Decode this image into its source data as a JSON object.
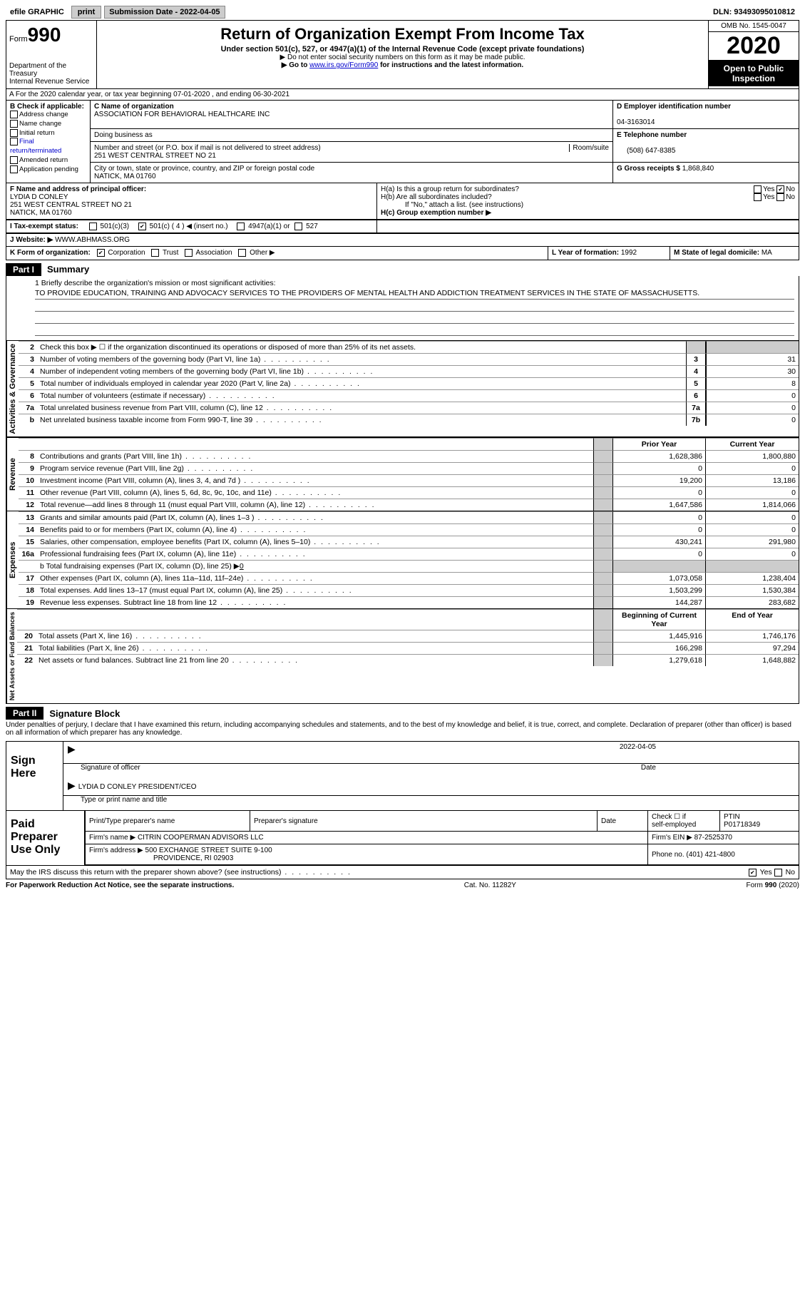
{
  "topbar": {
    "efile": "efile GRAPHIC",
    "print": "print",
    "sub_label": "Submission Date - ",
    "sub_date": "2022-04-05",
    "dln_label": "DLN: ",
    "dln": "93493095010812"
  },
  "header": {
    "form_label": "Form",
    "form_num": "990",
    "dept1": "Department of the Treasury",
    "dept2": "Internal Revenue Service",
    "title": "Return of Organization Exempt From Income Tax",
    "sub1": "Under section 501(c), 527, or 4947(a)(1) of the Internal Revenue Code (except private foundations)",
    "sub2": "▶ Do not enter social security numbers on this form as it may be made public.",
    "sub3_a": "▶ Go to ",
    "sub3_link": "www.irs.gov/Form990",
    "sub3_b": " for instructions and the latest information.",
    "omb": "OMB No. 1545-0047",
    "year": "2020",
    "open1": "Open to Public",
    "open2": "Inspection"
  },
  "lineA": "A For the 2020 calendar year, or tax year beginning 07-01-2020    , and ending 06-30-2021",
  "boxB": {
    "title": "B Check if applicable:",
    "items": [
      "Address change",
      "Name change",
      "Initial return",
      "Final return/terminated",
      "Amended return",
      "Application pending"
    ]
  },
  "boxC": {
    "label": "C Name of organization",
    "name": "ASSOCIATION FOR BEHAVIORAL HEALTHCARE INC",
    "dba_label": "Doing business as",
    "addr_label": "Number and street (or P.O. box if mail is not delivered to street address)",
    "room_label": "Room/suite",
    "addr": "251 WEST CENTRAL STREET NO 21",
    "city_label": "City or town, state or province, country, and ZIP or foreign postal code",
    "city": "NATICK, MA  01760"
  },
  "boxD": {
    "label": "D Employer identification number",
    "value": "04-3163014"
  },
  "boxE": {
    "label": "E Telephone number",
    "value": "(508) 647-8385"
  },
  "boxG": {
    "label": "G Gross receipts $ ",
    "value": "1,868,840"
  },
  "boxF": {
    "label": "F  Name and address of principal officer:",
    "name": "LYDIA D CONLEY",
    "addr1": "251 WEST CENTRAL STREET NO 21",
    "addr2": "NATICK, MA  01760"
  },
  "boxH": {
    "a": "H(a)  Is this a group return for subordinates?",
    "b": "H(b)  Are all subordinates included?",
    "b2": "If \"No,\" attach a list. (see instructions)",
    "c": "H(c)  Group exemption number ▶",
    "yes": "Yes",
    "no": "No"
  },
  "boxI": {
    "label": "I   Tax-exempt status:",
    "o1": "501(c)(3)",
    "o2": "501(c) ( 4 ) ◀ (insert no.)",
    "o3": "4947(a)(1) or",
    "o4": "527"
  },
  "boxJ": {
    "label": "J   Website: ▶ ",
    "value": "WWW.ABHMASS.ORG"
  },
  "boxK": {
    "label": "K Form of organization:",
    "o1": "Corporation",
    "o2": "Trust",
    "o3": "Association",
    "o4": "Other ▶"
  },
  "boxL": {
    "label": "L Year of formation: ",
    "value": "1992"
  },
  "boxM": {
    "label": "M State of legal domicile: ",
    "value": "MA"
  },
  "part1": {
    "tag": "Part I",
    "title": "Summary"
  },
  "mission": {
    "q": "1   Briefly describe the organization's mission or most significant activities:",
    "text": "TO PROVIDE EDUCATION, TRAINING AND ADVOCACY SERVICES TO THE PROVIDERS OF MENTAL HEALTH AND ADDICTION TREATMENT SERVICES IN THE STATE OF MASSACHUSETTS."
  },
  "gov": {
    "strip": "Activities & Governance",
    "l2": "Check this box ▶ ☐  if the organization discontinued its operations or disposed of more than 25% of its net assets.",
    "rows": [
      {
        "n": "3",
        "d": "Number of voting members of the governing body (Part VI, line 1a)",
        "b": "3",
        "v": "31"
      },
      {
        "n": "4",
        "d": "Number of independent voting members of the governing body (Part VI, line 1b)",
        "b": "4",
        "v": "30"
      },
      {
        "n": "5",
        "d": "Total number of individuals employed in calendar year 2020 (Part V, line 2a)",
        "b": "5",
        "v": "8"
      },
      {
        "n": "6",
        "d": "Total number of volunteers (estimate if necessary)",
        "b": "6",
        "v": "0"
      },
      {
        "n": "7a",
        "d": "Total unrelated business revenue from Part VIII, column (C), line 12",
        "b": "7a",
        "v": "0"
      },
      {
        "n": "b",
        "d": "Net unrelated business taxable income from Form 990-T, line 39",
        "b": "7b",
        "v": "0"
      }
    ]
  },
  "cols": {
    "py": "Prior Year",
    "cy": "Current Year"
  },
  "rev": {
    "strip": "Revenue",
    "rows": [
      {
        "n": "8",
        "d": "Contributions and grants (Part VIII, line 1h)",
        "py": "1,628,386",
        "cy": "1,800,880"
      },
      {
        "n": "9",
        "d": "Program service revenue (Part VIII, line 2g)",
        "py": "0",
        "cy": "0"
      },
      {
        "n": "10",
        "d": "Investment income (Part VIII, column (A), lines 3, 4, and 7d )",
        "py": "19,200",
        "cy": "13,186"
      },
      {
        "n": "11",
        "d": "Other revenue (Part VIII, column (A), lines 5, 6d, 8c, 9c, 10c, and 11e)",
        "py": "0",
        "cy": "0"
      },
      {
        "n": "12",
        "d": "Total revenue—add lines 8 through 11 (must equal Part VIII, column (A), line 12)",
        "py": "1,647,586",
        "cy": "1,814,066"
      }
    ]
  },
  "exp": {
    "strip": "Expenses",
    "rows": [
      {
        "n": "13",
        "d": "Grants and similar amounts paid (Part IX, column (A), lines 1–3 )",
        "py": "0",
        "cy": "0"
      },
      {
        "n": "14",
        "d": "Benefits paid to or for members (Part IX, column (A), line 4)",
        "py": "0",
        "cy": "0"
      },
      {
        "n": "15",
        "d": "Salaries, other compensation, employee benefits (Part IX, column (A), lines 5–10)",
        "py": "430,241",
        "cy": "291,980"
      },
      {
        "n": "16a",
        "d": "Professional fundraising fees (Part IX, column (A), line 11e)",
        "py": "0",
        "cy": "0"
      }
    ],
    "l16b": "b  Total fundraising expenses (Part IX, column (D), line 25) ▶",
    "l16b_v": "0",
    "rows2": [
      {
        "n": "17",
        "d": "Other expenses (Part IX, column (A), lines 11a–11d, 11f–24e)",
        "py": "1,073,058",
        "cy": "1,238,404"
      },
      {
        "n": "18",
        "d": "Total expenses. Add lines 13–17 (must equal Part IX, column (A), line 25)",
        "py": "1,503,299",
        "cy": "1,530,384"
      },
      {
        "n": "19",
        "d": "Revenue less expenses. Subtract line 18 from line 12",
        "py": "144,287",
        "cy": "283,682"
      }
    ]
  },
  "na": {
    "strip": "Net Assets or Fund Balances",
    "h_py": "Beginning of Current Year",
    "h_cy": "End of Year",
    "rows": [
      {
        "n": "20",
        "d": "Total assets (Part X, line 16)",
        "py": "1,445,916",
        "cy": "1,746,176"
      },
      {
        "n": "21",
        "d": "Total liabilities (Part X, line 26)",
        "py": "166,298",
        "cy": "97,294"
      },
      {
        "n": "22",
        "d": "Net assets or fund balances. Subtract line 21 from line 20",
        "py": "1,279,618",
        "cy": "1,648,882"
      }
    ]
  },
  "part2": {
    "tag": "Part II",
    "title": "Signature Block"
  },
  "penalties": "Under penalties of perjury, I declare that I have examined this return, including accompanying schedules and statements, and to the best of my knowledge and belief, it is true, correct, and complete. Declaration of preparer (other than officer) is based on all information of which preparer has any knowledge.",
  "sign": {
    "label": "Sign Here",
    "sig_of": "Signature of officer",
    "date_l": "Date",
    "date": "2022-04-05",
    "typed": "LYDIA D CONLEY PRESIDENT/CEO",
    "typed_l": "Type or print name and title"
  },
  "prep": {
    "label": "Paid Preparer Use Only",
    "h1": "Print/Type preparer's name",
    "h2": "Preparer's signature",
    "h3": "Date",
    "h4a": "Check ☐ if",
    "h4b": "self-employed",
    "h5": "PTIN",
    "ptin": "P01718349",
    "firm_l": "Firm's name    ▶",
    "firm": "CITRIN COOPERMAN ADVISORS LLC",
    "ein_l": "Firm's EIN ▶ ",
    "ein": "87-2525370",
    "addr_l": "Firm's address ▶",
    "addr1": "500 EXCHANGE STREET SUITE 9-100",
    "addr2": "PROVIDENCE, RI  02903",
    "phone_l": "Phone no. ",
    "phone": "(401) 421-4800"
  },
  "discuss": "May the IRS discuss this return with the preparer shown above? (see instructions)",
  "foot": {
    "left": "For Paperwork Reduction Act Notice, see the separate instructions.",
    "mid": "Cat. No. 11282Y",
    "right": "Form 990 (2020)"
  }
}
